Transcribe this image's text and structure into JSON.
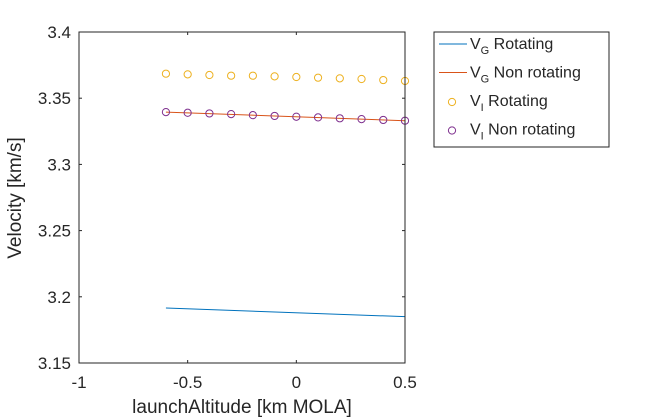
{
  "chart_data": {
    "type": "line",
    "title": "",
    "xlabel": "launchAltitude [km MOLA]",
    "ylabel": "Velocity [km/s]",
    "xlim": [
      -1,
      0.5
    ],
    "ylim": [
      3.15,
      3.4
    ],
    "xticks": [
      -1,
      -0.5,
      0,
      0.5
    ],
    "xtick_labels": [
      "-1",
      "-0.5",
      "0",
      "0.5"
    ],
    "yticks": [
      3.15,
      3.2,
      3.25,
      3.3,
      3.35,
      3.4
    ],
    "ytick_labels": [
      "3.15",
      "3.2",
      "3.25",
      "3.3",
      "3.35",
      "3.4"
    ],
    "grid": false,
    "legend_position": "outside-top-right",
    "series": [
      {
        "name": "V_G Rotating",
        "legend_main": "V",
        "legend_sub": "G",
        "legend_rest": " Rotating",
        "style": "line",
        "color": "#0072BD",
        "x": [
          -0.6,
          0.5
        ],
        "y": [
          3.1915,
          3.185
        ]
      },
      {
        "name": "V_G Non rotating",
        "legend_main": "V",
        "legend_sub": "G",
        "legend_rest": " Non rotating",
        "style": "line",
        "color": "#D95319",
        "x": [
          -0.6,
          0.5
        ],
        "y": [
          3.3395,
          3.333
        ]
      },
      {
        "name": "V_I Rotating",
        "legend_main": "V",
        "legend_sub": "I",
        "legend_rest": " Rotating",
        "style": "markers",
        "color": "#EDB120",
        "x": [
          -0.6,
          -0.5,
          -0.4,
          -0.3,
          -0.2,
          -0.1,
          0,
          0.1,
          0.2,
          0.3,
          0.4,
          0.5
        ],
        "y": [
          3.3685,
          3.368,
          3.3675,
          3.367,
          3.367,
          3.3665,
          3.366,
          3.3655,
          3.365,
          3.3645,
          3.3637,
          3.363
        ]
      },
      {
        "name": "V_I Non rotating",
        "legend_main": "V",
        "legend_sub": "I",
        "legend_rest": " Non rotating",
        "style": "markers",
        "color": "#7E2F8E",
        "x": [
          -0.6,
          -0.5,
          -0.4,
          -0.3,
          -0.2,
          -0.1,
          0,
          0.1,
          0.2,
          0.3,
          0.4,
          0.5
        ],
        "y": [
          3.3395,
          3.339,
          3.3385,
          3.338,
          3.3372,
          3.3366,
          3.336,
          3.3355,
          3.3348,
          3.3342,
          3.3336,
          3.333
        ]
      }
    ]
  }
}
